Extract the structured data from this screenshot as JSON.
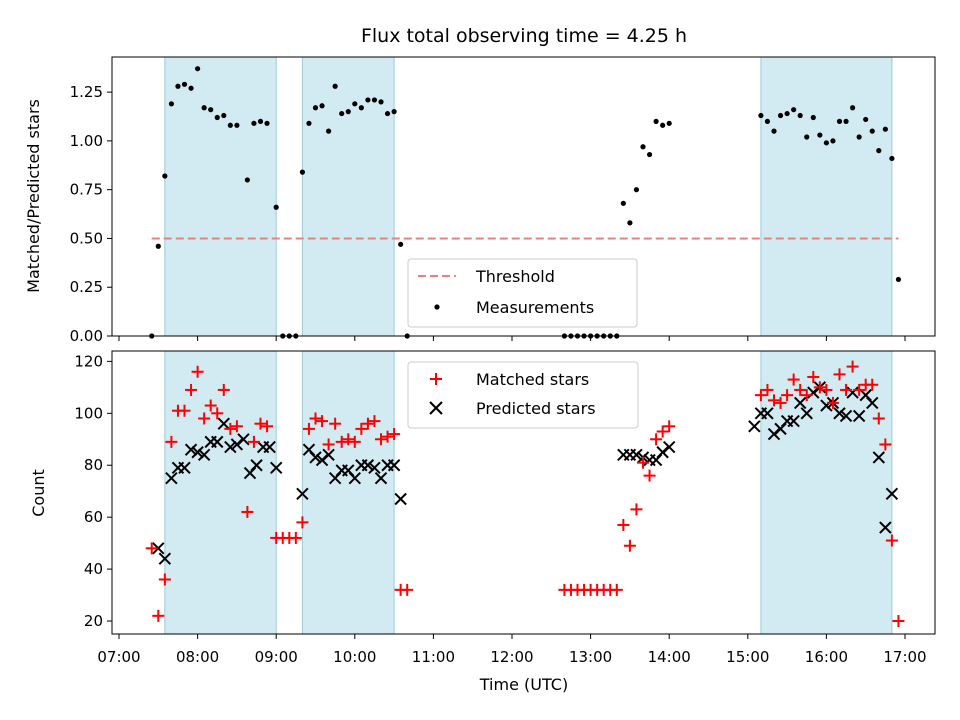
{
  "chart_data": [
    {
      "type": "scatter",
      "title": "Flux total observing time = 4.25 h",
      "xlabel": "",
      "ylabel": "Matched/Predicted stars",
      "xlim": [
        "07:00",
        "17:00"
      ],
      "ylim": [
        0,
        1.43
      ],
      "ytick_labels": [
        "0.00",
        "0.25",
        "0.50",
        "0.75",
        "1.00",
        "1.25"
      ],
      "ytick_values": [
        0,
        0.25,
        0.5,
        0.75,
        1.0,
        1.25
      ],
      "legend_position": "lower-center",
      "threshold": {
        "name": "Threshold",
        "value": 0.5,
        "x_start": "07:25",
        "x_end": "16:55",
        "color": "#f08080"
      },
      "shaded_intervals": [
        [
          "07:35",
          "09:00"
        ],
        [
          "09:20",
          "10:30"
        ],
        [
          "15:10",
          "16:50"
        ]
      ],
      "series": [
        {
          "name": "Measurements",
          "color": "#000000",
          "points": [
            [
              "07:25",
              0.0
            ],
            [
              "07:30",
              0.46
            ],
            [
              "07:35",
              0.82
            ],
            [
              "07:40",
              1.19
            ],
            [
              "07:45",
              1.28
            ],
            [
              "07:50",
              1.29
            ],
            [
              "07:55",
              1.27
            ],
            [
              "08:00",
              1.37
            ],
            [
              "08:05",
              1.17
            ],
            [
              "08:10",
              1.16
            ],
            [
              "08:15",
              1.12
            ],
            [
              "08:20",
              1.13
            ],
            [
              "08:25",
              1.08
            ],
            [
              "08:30",
              1.08
            ],
            [
              "08:38",
              0.8
            ],
            [
              "08:43",
              1.09
            ],
            [
              "08:48",
              1.1
            ],
            [
              "08:53",
              1.09
            ],
            [
              "09:00",
              0.66
            ],
            [
              "09:05",
              0.0
            ],
            [
              "09:10",
              0.0
            ],
            [
              "09:15",
              0.0
            ],
            [
              "09:20",
              0.84
            ],
            [
              "09:25",
              1.09
            ],
            [
              "09:30",
              1.17
            ],
            [
              "09:35",
              1.18
            ],
            [
              "09:40",
              1.05
            ],
            [
              "09:45",
              1.28
            ],
            [
              "09:50",
              1.14
            ],
            [
              "09:55",
              1.15
            ],
            [
              "10:00",
              1.19
            ],
            [
              "10:05",
              1.17
            ],
            [
              "10:10",
              1.21
            ],
            [
              "10:15",
              1.21
            ],
            [
              "10:20",
              1.2
            ],
            [
              "10:25",
              1.14
            ],
            [
              "10:30",
              1.15
            ],
            [
              "10:35",
              0.47
            ],
            [
              "10:40",
              0.0
            ],
            [
              "12:40",
              0.0
            ],
            [
              "12:45",
              0.0
            ],
            [
              "12:50",
              0.0
            ],
            [
              "12:55",
              0.0
            ],
            [
              "13:00",
              0.0
            ],
            [
              "13:05",
              0.0
            ],
            [
              "13:10",
              0.0
            ],
            [
              "13:15",
              0.0
            ],
            [
              "13:20",
              0.0
            ],
            [
              "13:25",
              0.68
            ],
            [
              "13:30",
              0.58
            ],
            [
              "13:35",
              0.75
            ],
            [
              "13:40",
              0.97
            ],
            [
              "13:45",
              0.93
            ],
            [
              "13:50",
              1.1
            ],
            [
              "13:55",
              1.08
            ],
            [
              "14:00",
              1.09
            ],
            [
              "15:10",
              1.13
            ],
            [
              "15:15",
              1.1
            ],
            [
              "15:20",
              1.05
            ],
            [
              "15:25",
              1.13
            ],
            [
              "15:30",
              1.14
            ],
            [
              "15:35",
              1.16
            ],
            [
              "15:40",
              1.13
            ],
            [
              "15:45",
              1.02
            ],
            [
              "15:50",
              1.12
            ],
            [
              "15:55",
              1.03
            ],
            [
              "16:00",
              0.99
            ],
            [
              "16:05",
              1.0
            ],
            [
              "16:10",
              1.1
            ],
            [
              "16:15",
              1.1
            ],
            [
              "16:20",
              1.17
            ],
            [
              "16:25",
              1.02
            ],
            [
              "16:30",
              1.11
            ],
            [
              "16:35",
              1.05
            ],
            [
              "16:40",
              0.95
            ],
            [
              "16:45",
              1.06
            ],
            [
              "16:50",
              0.91
            ],
            [
              "16:55",
              0.29
            ]
          ]
        }
      ]
    },
    {
      "type": "scatter",
      "title": "",
      "xlabel": "Time (UTC)",
      "ylabel": "Count",
      "xlim": [
        "07:00",
        "17:00"
      ],
      "ylim": [
        15,
        124
      ],
      "ytick_labels": [
        "20",
        "40",
        "60",
        "80",
        "100",
        "120"
      ],
      "ytick_values": [
        20,
        40,
        60,
        80,
        100,
        120
      ],
      "xtick_labels": [
        "07:00",
        "08:00",
        "09:00",
        "10:00",
        "11:00",
        "12:00",
        "13:00",
        "14:00",
        "15:00",
        "16:00",
        "17:00"
      ],
      "legend_position": "upper-center",
      "shaded_intervals": [
        [
          "07:35",
          "09:00"
        ],
        [
          "09:20",
          "10:30"
        ],
        [
          "15:10",
          "16:50"
        ]
      ],
      "series": [
        {
          "name": "Matched stars",
          "color": "#ff0000",
          "marker": "plus",
          "points": [
            [
              "07:25",
              48
            ],
            [
              "07:30",
              22
            ],
            [
              "07:35",
              36
            ],
            [
              "07:40",
              89
            ],
            [
              "07:45",
              101
            ],
            [
              "07:50",
              101
            ],
            [
              "07:55",
              109
            ],
            [
              "08:00",
              116
            ],
            [
              "08:05",
              98
            ],
            [
              "08:10",
              103
            ],
            [
              "08:15",
              100
            ],
            [
              "08:20",
              109
            ],
            [
              "08:25",
              94
            ],
            [
              "08:30",
              95
            ],
            [
              "08:38",
              62
            ],
            [
              "08:43",
              89
            ],
            [
              "08:48",
              96
            ],
            [
              "08:53",
              95
            ],
            [
              "09:00",
              52
            ],
            [
              "09:05",
              52
            ],
            [
              "09:10",
              52
            ],
            [
              "09:15",
              52
            ],
            [
              "09:20",
              58
            ],
            [
              "09:25",
              94
            ],
            [
              "09:30",
              98
            ],
            [
              "09:35",
              97
            ],
            [
              "09:40",
              88
            ],
            [
              "09:45",
              96
            ],
            [
              "09:50",
              89
            ],
            [
              "09:55",
              90
            ],
            [
              "10:00",
              89
            ],
            [
              "10:05",
              94
            ],
            [
              "10:10",
              96
            ],
            [
              "10:15",
              97
            ],
            [
              "10:20",
              90
            ],
            [
              "10:25",
              91
            ],
            [
              "10:30",
              92
            ],
            [
              "10:35",
              32
            ],
            [
              "10:40",
              32
            ],
            [
              "12:40",
              32
            ],
            [
              "12:45",
              32
            ],
            [
              "12:50",
              32
            ],
            [
              "12:55",
              32
            ],
            [
              "13:00",
              32
            ],
            [
              "13:05",
              32
            ],
            [
              "13:10",
              32
            ],
            [
              "13:15",
              32
            ],
            [
              "13:20",
              32
            ],
            [
              "13:25",
              57
            ],
            [
              "13:30",
              49
            ],
            [
              "13:35",
              63
            ],
            [
              "13:40",
              81
            ],
            [
              "13:45",
              76
            ],
            [
              "13:50",
              90
            ],
            [
              "13:55",
              93
            ],
            [
              "14:00",
              95
            ],
            [
              "15:10",
              107
            ],
            [
              "15:15",
              109
            ],
            [
              "15:20",
              105
            ],
            [
              "15:25",
              104
            ],
            [
              "15:30",
              107
            ],
            [
              "15:35",
              113
            ],
            [
              "15:40",
              109
            ],
            [
              "15:45",
              107
            ],
            [
              "15:50",
              114
            ],
            [
              "15:55",
              110
            ],
            [
              "16:00",
              109
            ],
            [
              "16:05",
              104
            ],
            [
              "16:10",
              115
            ],
            [
              "16:15",
              109
            ],
            [
              "16:20",
              118
            ],
            [
              "16:25",
              109
            ],
            [
              "16:30",
              111
            ],
            [
              "16:35",
              111
            ],
            [
              "16:40",
              98
            ],
            [
              "16:45",
              88
            ],
            [
              "16:50",
              51
            ],
            [
              "16:55",
              20
            ]
          ]
        },
        {
          "name": "Predicted stars",
          "color": "#000000",
          "marker": "x",
          "points": [
            [
              "07:30",
              48
            ],
            [
              "07:35",
              44
            ],
            [
              "07:40",
              75
            ],
            [
              "07:45",
              79
            ],
            [
              "07:50",
              79
            ],
            [
              "07:55",
              86
            ],
            [
              "08:00",
              85
            ],
            [
              "08:05",
              84
            ],
            [
              "08:10",
              89
            ],
            [
              "08:15",
              89
            ],
            [
              "08:20",
              96
            ],
            [
              "08:25",
              87
            ],
            [
              "08:30",
              88
            ],
            [
              "08:35",
              90
            ],
            [
              "08:40",
              77
            ],
            [
              "08:45",
              80
            ],
            [
              "08:50",
              87
            ],
            [
              "08:55",
              87
            ],
            [
              "09:00",
              79
            ],
            [
              "09:20",
              69
            ],
            [
              "09:25",
              86
            ],
            [
              "09:30",
              83
            ],
            [
              "09:35",
              82
            ],
            [
              "09:40",
              84
            ],
            [
              "09:45",
              75
            ],
            [
              "09:50",
              78
            ],
            [
              "09:55",
              78
            ],
            [
              "10:00",
              75
            ],
            [
              "10:05",
              80
            ],
            [
              "10:10",
              80
            ],
            [
              "10:15",
              79
            ],
            [
              "10:20",
              75
            ],
            [
              "10:25",
              80
            ],
            [
              "10:30",
              80
            ],
            [
              "10:35",
              67
            ],
            [
              "13:25",
              84
            ],
            [
              "13:30",
              84
            ],
            [
              "13:35",
              84
            ],
            [
              "13:40",
              83
            ],
            [
              "13:45",
              82
            ],
            [
              "13:50",
              82
            ],
            [
              "13:55",
              85
            ],
            [
              "14:00",
              87
            ],
            [
              "15:05",
              95
            ],
            [
              "15:10",
              100
            ],
            [
              "15:15",
              100
            ],
            [
              "15:20",
              92
            ],
            [
              "15:25",
              94
            ],
            [
              "15:30",
              97
            ],
            [
              "15:35",
              97
            ],
            [
              "15:40",
              104
            ],
            [
              "15:45",
              100
            ],
            [
              "15:50",
              108
            ],
            [
              "15:55",
              110
            ],
            [
              "16:00",
              103
            ],
            [
              "16:05",
              104
            ],
            [
              "16:10",
              100
            ],
            [
              "16:15",
              99
            ],
            [
              "16:20",
              108
            ],
            [
              "16:25",
              99
            ],
            [
              "16:30",
              107
            ],
            [
              "16:35",
              104
            ],
            [
              "16:40",
              83
            ],
            [
              "16:45",
              56
            ],
            [
              "16:50",
              69
            ]
          ]
        }
      ]
    }
  ]
}
